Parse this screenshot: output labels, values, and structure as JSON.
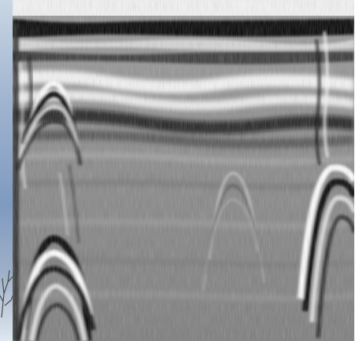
{
  "scene": {
    "background_photo": "sky-and-bare-tree",
    "subject": "ground-penetrating-radar-radargram",
    "palette": {
      "dark": "#000000",
      "mid_gray": "#8a8a8a",
      "light": "#ffffff",
      "sky": "#8fa8c8"
    },
    "visible_features": [
      "surface-bright-band",
      "horizontal-layer-reflections",
      "hyperbola-left",
      "hyperbola-center",
      "hyperbola-right"
    ]
  }
}
